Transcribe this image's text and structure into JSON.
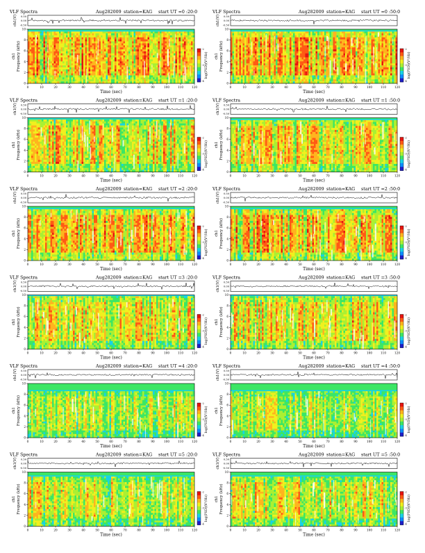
{
  "figure": {
    "title_prefix": "VLF Spectra",
    "date": "Aug282009",
    "station": "station=KAG",
    "ut_prefix": "start  UT  ="
  },
  "colors": {
    "waveform": "#000000",
    "colormap": [
      "#1e1ec8",
      "#0c8cff",
      "#18d2e6",
      "#3ce664",
      "#aaf032",
      "#f0f01e",
      "#ffb41e",
      "#ff5a14",
      "#e6140f"
    ],
    "speckle": "#ffffff"
  },
  "chart_data": [
    {
      "type": "heatmap",
      "title": "VLF Spectra",
      "date": "Aug282009",
      "station": "station=KAG",
      "start_ut": "0 :20:0",
      "waveform_ylabel": "ch1(V)",
      "waveform_ticks": [
        "0.50",
        "0.00",
        "-0.50"
      ],
      "xlabel": "Time  (sec)",
      "xlim": [
        0,
        120
      ],
      "xticks": [
        0,
        10,
        20,
        30,
        40,
        50,
        60,
        70,
        80,
        90,
        100,
        110,
        120
      ],
      "ylabel": "Frequency  (kHz)",
      "ylabel_side": "ch1",
      "ylim": [
        0,
        10
      ],
      "yticks": [
        0,
        2,
        4,
        6,
        8,
        10
      ],
      "colorbar_label": "log(PSD)(V²/Hz)",
      "colorbar_ticks": [
        "-2",
        "-3",
        "-4"
      ],
      "band_top_khz": 9.6,
      "intensity": 0.82,
      "column_mix": 0.45
    },
    {
      "type": "heatmap",
      "title": "VLF Spectra",
      "date": "Aug282009",
      "station": "station=KAG",
      "start_ut": "0 :50:0",
      "waveform_ylabel": "ch1(V)",
      "waveform_ticks": [
        "0.50",
        "0.00",
        "-0.50"
      ],
      "xlabel": "Time  (sec)",
      "xlim": [
        0,
        120
      ],
      "xticks": [
        0,
        10,
        20,
        30,
        40,
        50,
        60,
        70,
        80,
        90,
        100,
        110,
        120
      ],
      "ylabel": "Frequency  (kHz)",
      "ylabel_side": "ch1",
      "ylim": [
        0,
        10
      ],
      "yticks": [
        0,
        2,
        4,
        6,
        8,
        10
      ],
      "colorbar_label": "log(PSD)(V²/Hz)",
      "colorbar_ticks": [
        "-2",
        "-3",
        "-4"
      ],
      "band_top_khz": 9.6,
      "intensity": 0.84,
      "column_mix": 0.45
    },
    {
      "type": "heatmap",
      "title": "VLF Spectra",
      "date": "Aug282009",
      "station": "station=KAG",
      "start_ut": "1 :20:0",
      "waveform_ylabel": "ch1(V)",
      "waveform_ticks": [
        "0.50",
        "0.00",
        "-0.50"
      ],
      "xlabel": "Time  (sec)",
      "xlim": [
        0,
        120
      ],
      "xticks": [
        0,
        10,
        20,
        30,
        40,
        50,
        60,
        70,
        80,
        90,
        100,
        110,
        120
      ],
      "ylabel": "Frequency  (kHz)",
      "ylabel_side": "ch1",
      "ylim": [
        0,
        10
      ],
      "yticks": [
        0,
        2,
        4,
        6,
        8,
        10
      ],
      "colorbar_label": "log(PSD)(V²/Hz)",
      "colorbar_ticks": [
        "-2",
        "-3",
        "-4"
      ],
      "band_top_khz": 9.7,
      "intensity": 0.76,
      "column_mix": 0.5
    },
    {
      "type": "heatmap",
      "title": "VLF Spectra",
      "date": "Aug282009",
      "station": "station=KAG",
      "start_ut": "1 :50:0",
      "waveform_ylabel": "ch1(V)",
      "waveform_ticks": [
        "0.50",
        "0.00",
        "-0.50"
      ],
      "xlabel": "Time  (sec)",
      "xlim": [
        0,
        120
      ],
      "xticks": [
        0,
        10,
        20,
        30,
        40,
        50,
        60,
        70,
        80,
        90,
        100,
        110,
        120
      ],
      "ylabel": "Frequency  (kHz)",
      "ylabel_side": "ch1",
      "ylim": [
        0,
        10
      ],
      "yticks": [
        0,
        2,
        4,
        6,
        8,
        10
      ],
      "colorbar_label": "log(PSD)(V²/Hz)",
      "colorbar_ticks": [
        "-2",
        "-3",
        "-4"
      ],
      "band_top_khz": 9.6,
      "intensity": 0.74,
      "column_mix": 0.5
    },
    {
      "type": "heatmap",
      "title": "VLF Spectra",
      "date": "Aug282009",
      "station": "station=KAG",
      "start_ut": "2 :20:0",
      "waveform_ylabel": "ch1(V)",
      "waveform_ticks": [
        "0.50",
        "0.00",
        "-0.50"
      ],
      "xlabel": "Time  (sec)",
      "xlim": [
        0,
        120
      ],
      "xticks": [
        0,
        10,
        20,
        30,
        40,
        50,
        60,
        70,
        80,
        90,
        100,
        110,
        120
      ],
      "ylabel": "Frequency  (kHz)",
      "ylabel_side": "ch1",
      "ylim": [
        0,
        10
      ],
      "yticks": [
        0,
        2,
        4,
        6,
        8,
        10
      ],
      "colorbar_label": "log(PSD)(V²/Hz)",
      "colorbar_ticks": [
        "-2",
        "-3",
        "-4"
      ],
      "band_top_khz": 9.5,
      "intensity": 0.8,
      "column_mix": 0.4
    },
    {
      "type": "heatmap",
      "title": "VLF Spectra",
      "date": "Aug282009",
      "station": "station=KAG",
      "start_ut": "2 :50:0",
      "waveform_ylabel": "ch1(V)",
      "waveform_ticks": [
        "0.50",
        "0.00",
        "-0.50"
      ],
      "xlabel": "Time  (sec)",
      "xlim": [
        0,
        120
      ],
      "xticks": [
        0,
        10,
        20,
        30,
        40,
        50,
        60,
        70,
        80,
        90,
        100,
        110,
        120
      ],
      "ylabel": "Frequency  (kHz)",
      "ylabel_side": "ch1",
      "ylim": [
        0,
        10
      ],
      "yticks": [
        0,
        2,
        4,
        6,
        8,
        10
      ],
      "colorbar_label": "log(PSD)(V²/Hz)",
      "colorbar_ticks": [
        "-2",
        "-3",
        "-4"
      ],
      "band_top_khz": 9.5,
      "intensity": 0.8,
      "column_mix": 0.4
    },
    {
      "type": "heatmap",
      "title": "VLF Spectra",
      "date": "Aug282009",
      "station": "station=KAG",
      "start_ut": "3 :20:0",
      "waveform_ylabel": "ch1(V)",
      "waveform_ticks": [
        "0.50",
        "0.00",
        "-0.50"
      ],
      "xlabel": "Time  (sec)",
      "xlim": [
        0,
        120
      ],
      "xticks": [
        0,
        10,
        20,
        30,
        40,
        50,
        60,
        70,
        80,
        90,
        100,
        110,
        120
      ],
      "ylabel": "Frequency  (kHz)",
      "ylabel_side": "ch1",
      "ylim": [
        0,
        10
      ],
      "yticks": [
        0,
        2,
        4,
        6,
        8,
        10
      ],
      "colorbar_label": "log(PSD)(V²/Hz)",
      "colorbar_ticks": [
        "-2",
        "-3",
        "-4"
      ],
      "band_top_khz": 9.8,
      "intensity": 0.72,
      "column_mix": 0.55
    },
    {
      "type": "heatmap",
      "title": "VLF Spectra",
      "date": "Aug282009",
      "station": "station=KAG",
      "start_ut": "3 :50:0",
      "waveform_ylabel": "ch1(V)",
      "waveform_ticks": [
        "0.50",
        "0.00",
        "-0.50"
      ],
      "xlabel": "Time  (sec)",
      "xlim": [
        0,
        120
      ],
      "xticks": [
        0,
        10,
        20,
        30,
        40,
        50,
        60,
        70,
        80,
        90,
        100,
        110,
        120
      ],
      "ylabel": "Frequency  (kHz)",
      "ylabel_side": "ch1",
      "ylim": [
        0,
        10
      ],
      "yticks": [
        0,
        2,
        4,
        6,
        8,
        10
      ],
      "colorbar_label": "log(PSD)(V²/Hz)",
      "colorbar_ticks": [
        "-2",
        "-3",
        "-4"
      ],
      "band_top_khz": 9.8,
      "intensity": 0.74,
      "column_mix": 0.55
    },
    {
      "type": "heatmap",
      "title": "VLF Spectra",
      "date": "Aug282009",
      "station": "station=KAG",
      "start_ut": "4 :20:0",
      "waveform_ylabel": "ch1(V)",
      "waveform_ticks": [
        "0.50",
        "0.00",
        "-0.50"
      ],
      "xlabel": "Time  (sec)",
      "xlim": [
        0,
        120
      ],
      "xticks": [
        0,
        10,
        20,
        30,
        40,
        50,
        60,
        70,
        80,
        90,
        100,
        110,
        120
      ],
      "ylabel": "Frequency  (kHz)",
      "ylabel_side": "ch1",
      "ylim": [
        0,
        10
      ],
      "yticks": [
        0,
        2,
        4,
        6,
        8,
        10
      ],
      "colorbar_label": "log(PSD)(V²/Hz)",
      "colorbar_ticks": [
        "-2",
        "-3",
        "-4"
      ],
      "band_top_khz": 8.6,
      "intensity": 0.6,
      "column_mix": 0.65
    },
    {
      "type": "heatmap",
      "title": "VLF Spectra",
      "date": "Aug282009",
      "station": "station=KAG",
      "start_ut": "4 :50:0",
      "waveform_ylabel": "ch1(V)",
      "waveform_ticks": [
        "0.50",
        "0.00",
        "-0.50"
      ],
      "xlabel": "Time  (sec)",
      "xlim": [
        0,
        120
      ],
      "xticks": [
        0,
        10,
        20,
        30,
        40,
        50,
        60,
        70,
        80,
        90,
        100,
        110,
        120
      ],
      "ylabel": "Frequency  (kHz)",
      "ylabel_side": "ch1",
      "ylim": [
        0,
        10
      ],
      "yticks": [
        0,
        2,
        4,
        6,
        8,
        10
      ],
      "colorbar_label": "log(PSD)(V²/Hz)",
      "colorbar_ticks": [
        "-2",
        "-3",
        "-4"
      ],
      "band_top_khz": 8.6,
      "intensity": 0.6,
      "column_mix": 0.65
    },
    {
      "type": "heatmap",
      "title": "VLF Spectra",
      "date": "Aug282009",
      "station": "station=KAG",
      "start_ut": "5 :20:0",
      "waveform_ylabel": "ch1(V)",
      "waveform_ticks": [
        "0.50",
        "0.00",
        "-0.50"
      ],
      "xlabel": "Time  (sec)",
      "xlim": [
        0,
        120
      ],
      "xticks": [
        0,
        10,
        20,
        30,
        40,
        50,
        60,
        70,
        80,
        90,
        100,
        110,
        120
      ],
      "ylabel": "Frequency  (kHz)",
      "ylabel_side": "ch1",
      "ylim": [
        0,
        10
      ],
      "yticks": [
        0,
        2,
        4,
        6,
        8,
        10
      ],
      "colorbar_label": "log(PSD)(V²/Hz)",
      "colorbar_ticks": [
        "-2",
        "-3",
        "-4"
      ],
      "band_top_khz": 9.2,
      "intensity": 0.66,
      "column_mix": 0.6
    },
    {
      "type": "heatmap",
      "title": "VLF Spectra",
      "date": "Aug282009",
      "station": "station=KAG",
      "start_ut": "5 :50:0",
      "waveform_ylabel": "ch1(V)",
      "waveform_ticks": [
        "0.50",
        "0.00",
        "-0.50"
      ],
      "xlabel": "Time  (sec)",
      "xlim": [
        0,
        120
      ],
      "xticks": [
        0,
        10,
        20,
        30,
        40,
        50,
        60,
        70,
        80,
        90,
        100,
        110,
        120
      ],
      "ylabel": "Frequency  (kHz)",
      "ylabel_side": "ch1",
      "ylim": [
        0,
        10
      ],
      "yticks": [
        0,
        2,
        4,
        6,
        8,
        10
      ],
      "colorbar_label": "log(PSD)(V²/Hz)",
      "colorbar_ticks": [
        "-2",
        "-3",
        "-4"
      ],
      "band_top_khz": 9.2,
      "intensity": 0.68,
      "column_mix": 0.6
    }
  ]
}
